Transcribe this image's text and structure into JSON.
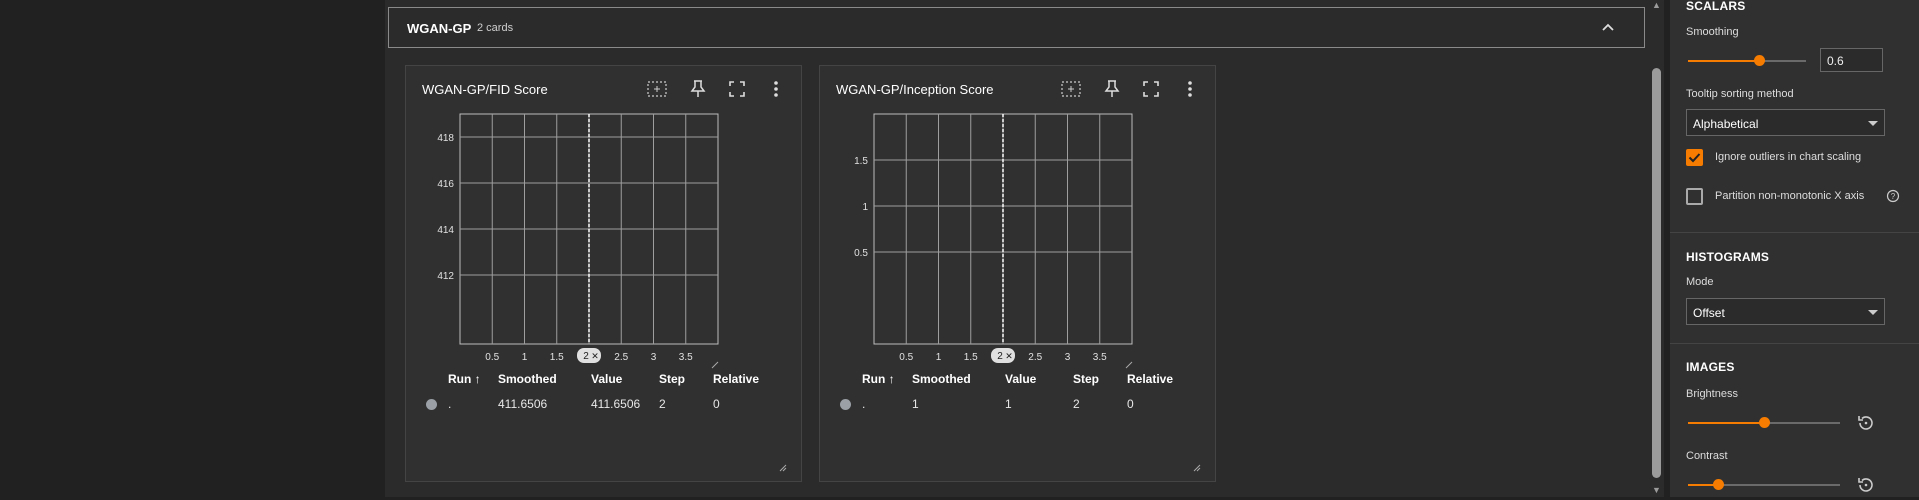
{
  "group": {
    "title": "WGAN-GP",
    "count": "2 cards"
  },
  "cards": [
    {
      "title": "WGAN-GP/FID Score",
      "y_ticks": [
        "418",
        "416",
        "414",
        "412"
      ],
      "x_ticks": [
        "0.5",
        "1",
        "1.5",
        "2.5",
        "3",
        "3.5"
      ],
      "cursor_label": "2",
      "table": {
        "headers": {
          "run": "Run ↑",
          "smoothed": "Smoothed",
          "value": "Value",
          "step": "Step",
          "relative": "Relative"
        },
        "row": {
          "run": ".",
          "smoothed": "411.6506",
          "value": "411.6506",
          "step": "2",
          "relative": "0"
        }
      }
    },
    {
      "title": "WGAN-GP/Inception Score",
      "y_ticks": [
        "1.5",
        "1",
        "0.5"
      ],
      "x_ticks": [
        "0.5",
        "1",
        "1.5",
        "2.5",
        "3",
        "3.5"
      ],
      "cursor_label": "2",
      "table": {
        "headers": {
          "run": "Run ↑",
          "smoothed": "Smoothed",
          "value": "Value",
          "step": "Step",
          "relative": "Relative"
        },
        "row": {
          "run": ".",
          "smoothed": "1",
          "value": "1",
          "step": "2",
          "relative": "0"
        }
      }
    }
  ],
  "sidebar": {
    "scalars": {
      "title": "SCALARS",
      "smoothing_label": "Smoothing",
      "smoothing_value": "0.6",
      "smoothing_fraction": 0.6,
      "tooltip_label": "Tooltip sorting method",
      "tooltip_value": "Alphabetical",
      "ignore_outliers_label": "Ignore outliers in chart scaling",
      "ignore_outliers_checked": true,
      "partition_label": "Partition non-monotonic X axis",
      "partition_checked": false
    },
    "histograms": {
      "title": "HISTOGRAMS",
      "mode_label": "Mode",
      "mode_value": "Offset"
    },
    "images": {
      "title": "IMAGES",
      "brightness_label": "Brightness",
      "brightness_fraction": 0.5,
      "contrast_label": "Contrast",
      "contrast_fraction": 0.2
    }
  },
  "colors": {
    "accent": "#f57c00",
    "background": "#2b2b2b",
    "card": "#303030"
  },
  "icons": [
    "chevron-up-icon",
    "fit-domain-icon",
    "pin-icon",
    "fullscreen-icon",
    "more-vert-icon",
    "help-icon",
    "reset-icon"
  ]
}
